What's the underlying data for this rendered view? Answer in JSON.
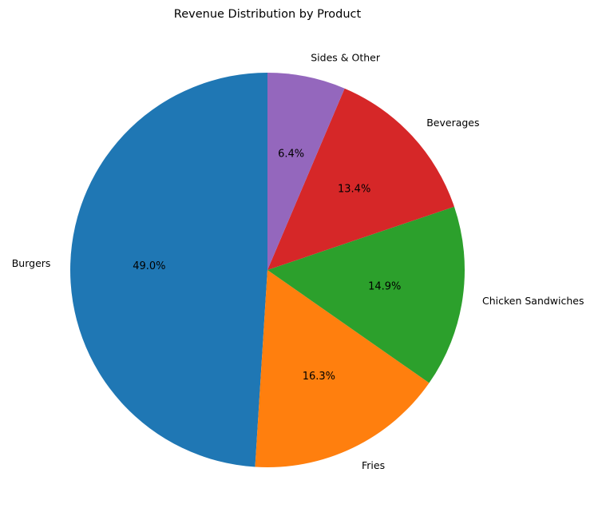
{
  "chart_data": {
    "type": "pie",
    "title": "Revenue Distribution by Product",
    "start_angle_deg": 90,
    "direction": "counterclockwise",
    "slices": [
      {
        "label": "Burgers",
        "value": 49.0,
        "pct_text": "49.0%",
        "color": "#1f77b4"
      },
      {
        "label": "Fries",
        "value": 16.3,
        "pct_text": "16.3%",
        "color": "#ff7f0e"
      },
      {
        "label": "Chicken Sandwiches",
        "value": 14.9,
        "pct_text": "14.9%",
        "color": "#2ca02c"
      },
      {
        "label": "Beverages",
        "value": 13.4,
        "pct_text": "13.4%",
        "color": "#d62728"
      },
      {
        "label": "Sides & Other",
        "value": 6.4,
        "pct_text": "6.4%",
        "color": "#9467bd"
      }
    ]
  }
}
